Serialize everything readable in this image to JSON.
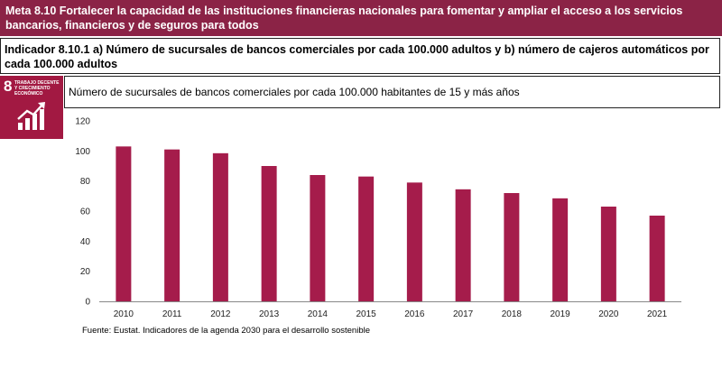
{
  "header": {
    "meta_title": "Meta 8.10 Fortalecer la capacidad de las instituciones financieras nacionales para fomentar y ampliar el acceso a los servicios bancarios, financieros y de seguros para todos",
    "indicator_title": "Indicador 8.10.1 a) Número de sucursales de bancos comerciales por cada 100.000 adultos y b) número de cajeros automáticos por cada 100.000 adultos",
    "subtitle": "Número de sucursales de bancos comerciales por cada 100.000 habitantes de 15 y más años"
  },
  "sdg_badge": {
    "number": "8",
    "label": "TRABAJO DECENTE Y CRECIMIENTO ECONÓMICO",
    "icon": "growth-chart-icon",
    "color": "#a21942"
  },
  "chart_data": {
    "type": "bar",
    "title": "Número de sucursales de bancos comerciales por cada 100.000 habitantes de 15 y más años",
    "categories": [
      "2010",
      "2011",
      "2012",
      "2013",
      "2014",
      "2015",
      "2016",
      "2017",
      "2018",
      "2019",
      "2020",
      "2021"
    ],
    "values": [
      103,
      101,
      98.5,
      90,
      84,
      83,
      79,
      74.5,
      72,
      68.5,
      63,
      57
    ],
    "ylim": [
      0,
      120
    ],
    "yticks": [
      0,
      20,
      40,
      60,
      80,
      100,
      120
    ],
    "xlabel": "",
    "ylabel": "",
    "bar_color": "#a51c4b",
    "grid": false
  },
  "source": "Fuente: Eustat. Indicadores de la agenda 2030 para el desarrollo sostenible"
}
